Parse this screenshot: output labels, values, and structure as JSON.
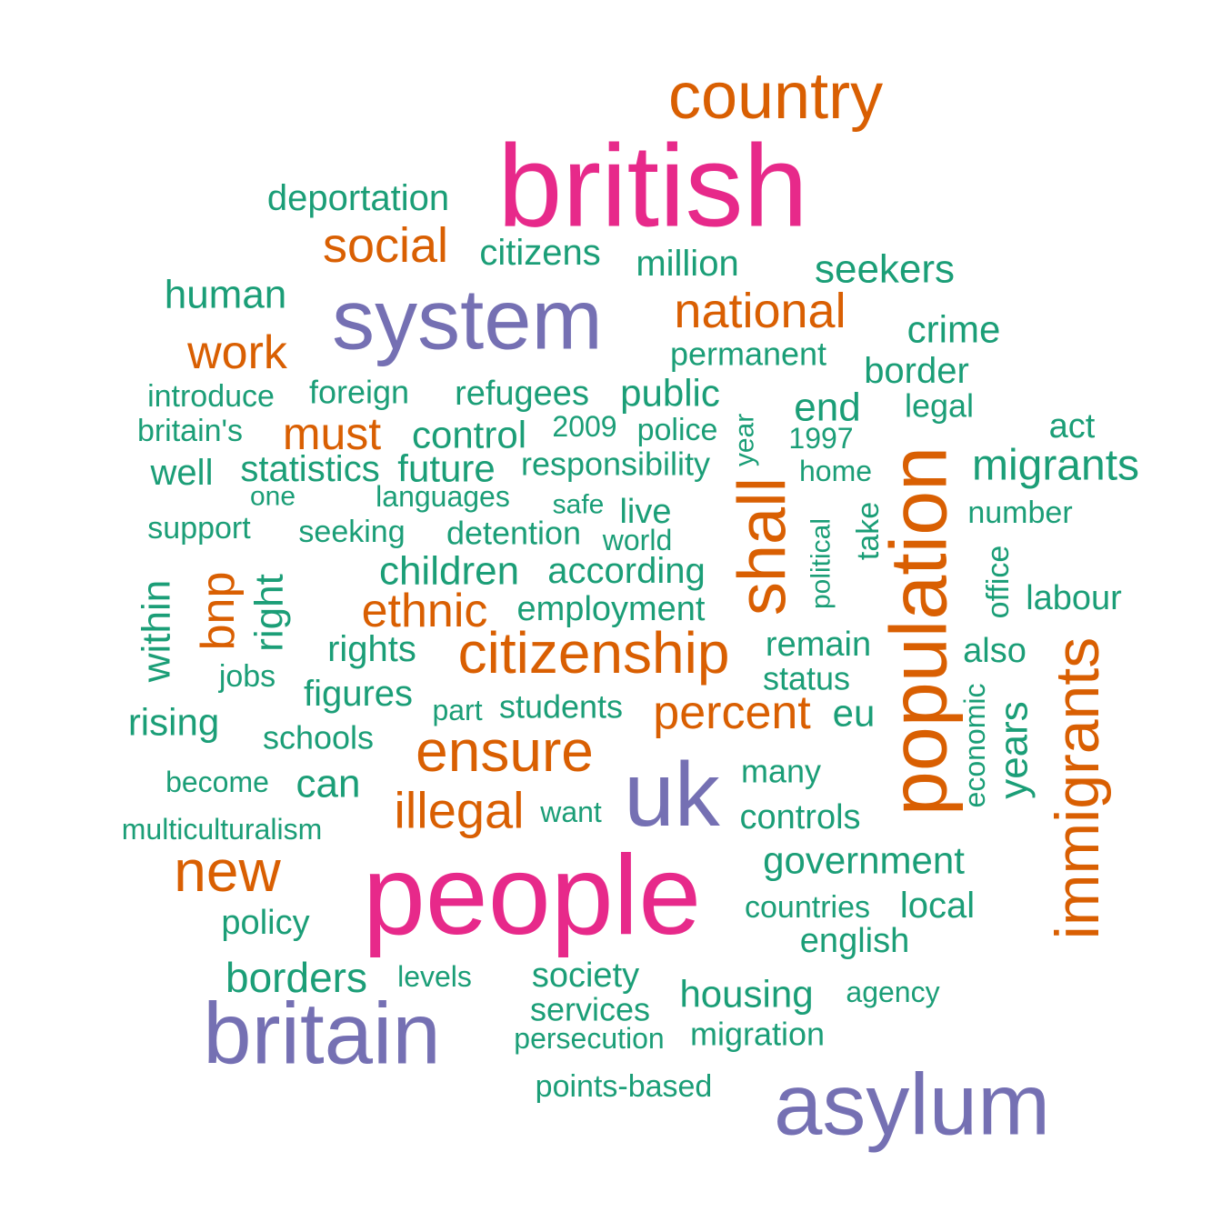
{
  "chart_data": {
    "type": "wordcloud",
    "colors": {
      "magenta": "#e7298a",
      "purple": "#7570b3",
      "orange": "#d95f02",
      "green": "#1b9e77"
    },
    "words": [
      {
        "text": "british",
        "color": "magenta",
        "freq_rank": 1
      },
      {
        "text": "people",
        "color": "magenta",
        "freq_rank": 1
      },
      {
        "text": "system",
        "color": "purple",
        "freq_rank": 2
      },
      {
        "text": "uk",
        "color": "purple",
        "freq_rank": 2
      },
      {
        "text": "britain",
        "color": "purple",
        "freq_rank": 2
      },
      {
        "text": "asylum",
        "color": "purple",
        "freq_rank": 2
      },
      {
        "text": "country",
        "color": "orange",
        "freq_rank": 3
      },
      {
        "text": "social",
        "color": "orange",
        "freq_rank": 3
      },
      {
        "text": "national",
        "color": "orange",
        "freq_rank": 3
      },
      {
        "text": "work",
        "color": "orange",
        "freq_rank": 3
      },
      {
        "text": "must",
        "color": "orange",
        "freq_rank": 3
      },
      {
        "text": "shall",
        "color": "orange",
        "freq_rank": 3
      },
      {
        "text": "population",
        "color": "orange",
        "freq_rank": 3
      },
      {
        "text": "bnp",
        "color": "orange",
        "freq_rank": 3
      },
      {
        "text": "ethnic",
        "color": "orange",
        "freq_rank": 3
      },
      {
        "text": "citizenship",
        "color": "orange",
        "freq_rank": 3
      },
      {
        "text": "percent",
        "color": "orange",
        "freq_rank": 3
      },
      {
        "text": "ensure",
        "color": "orange",
        "freq_rank": 3
      },
      {
        "text": "illegal",
        "color": "orange",
        "freq_rank": 3
      },
      {
        "text": "new",
        "color": "orange",
        "freq_rank": 3
      },
      {
        "text": "immigrants",
        "color": "orange",
        "freq_rank": 3
      },
      {
        "text": "deportation",
        "color": "green",
        "freq_rank": 4
      },
      {
        "text": "citizens",
        "color": "green",
        "freq_rank": 4
      },
      {
        "text": "million",
        "color": "green",
        "freq_rank": 4
      },
      {
        "text": "seekers",
        "color": "green",
        "freq_rank": 4
      },
      {
        "text": "human",
        "color": "green",
        "freq_rank": 4
      },
      {
        "text": "crime",
        "color": "green",
        "freq_rank": 4
      },
      {
        "text": "permanent",
        "color": "green",
        "freq_rank": 4
      },
      {
        "text": "border",
        "color": "green",
        "freq_rank": 4
      },
      {
        "text": "introduce",
        "color": "green",
        "freq_rank": 4
      },
      {
        "text": "foreign",
        "color": "green",
        "freq_rank": 4
      },
      {
        "text": "refugees",
        "color": "green",
        "freq_rank": 4
      },
      {
        "text": "public",
        "color": "green",
        "freq_rank": 4
      },
      {
        "text": "end",
        "color": "green",
        "freq_rank": 4
      },
      {
        "text": "legal",
        "color": "green",
        "freq_rank": 4
      },
      {
        "text": "britain's",
        "color": "green",
        "freq_rank": 4
      },
      {
        "text": "control",
        "color": "green",
        "freq_rank": 4
      },
      {
        "text": "2009",
        "color": "green",
        "freq_rank": 4
      },
      {
        "text": "police",
        "color": "green",
        "freq_rank": 4
      },
      {
        "text": "year",
        "color": "green",
        "freq_rank": 4
      },
      {
        "text": "1997",
        "color": "green",
        "freq_rank": 4
      },
      {
        "text": "act",
        "color": "green",
        "freq_rank": 4
      },
      {
        "text": "well",
        "color": "green",
        "freq_rank": 4
      },
      {
        "text": "statistics",
        "color": "green",
        "freq_rank": 4
      },
      {
        "text": "future",
        "color": "green",
        "freq_rank": 4
      },
      {
        "text": "responsibility",
        "color": "green",
        "freq_rank": 4
      },
      {
        "text": "home",
        "color": "green",
        "freq_rank": 4
      },
      {
        "text": "migrants",
        "color": "green",
        "freq_rank": 4
      },
      {
        "text": "one",
        "color": "green",
        "freq_rank": 4
      },
      {
        "text": "languages",
        "color": "green",
        "freq_rank": 4
      },
      {
        "text": "safe",
        "color": "green",
        "freq_rank": 4
      },
      {
        "text": "live",
        "color": "green",
        "freq_rank": 4
      },
      {
        "text": "number",
        "color": "green",
        "freq_rank": 4
      },
      {
        "text": "support",
        "color": "green",
        "freq_rank": 4
      },
      {
        "text": "seeking",
        "color": "green",
        "freq_rank": 4
      },
      {
        "text": "detention",
        "color": "green",
        "freq_rank": 4
      },
      {
        "text": "world",
        "color": "green",
        "freq_rank": 4
      },
      {
        "text": "political",
        "color": "green",
        "freq_rank": 4
      },
      {
        "text": "take",
        "color": "green",
        "freq_rank": 4
      },
      {
        "text": "office",
        "color": "green",
        "freq_rank": 4
      },
      {
        "text": "within",
        "color": "green",
        "freq_rank": 4
      },
      {
        "text": "right",
        "color": "green",
        "freq_rank": 4
      },
      {
        "text": "children",
        "color": "green",
        "freq_rank": 4
      },
      {
        "text": "according",
        "color": "green",
        "freq_rank": 4
      },
      {
        "text": "labour",
        "color": "green",
        "freq_rank": 4
      },
      {
        "text": "employment",
        "color": "green",
        "freq_rank": 4
      },
      {
        "text": "rights",
        "color": "green",
        "freq_rank": 4
      },
      {
        "text": "remain",
        "color": "green",
        "freq_rank": 4
      },
      {
        "text": "also",
        "color": "green",
        "freq_rank": 4
      },
      {
        "text": "jobs",
        "color": "green",
        "freq_rank": 4
      },
      {
        "text": "status",
        "color": "green",
        "freq_rank": 4
      },
      {
        "text": "figures",
        "color": "green",
        "freq_rank": 4
      },
      {
        "text": "part",
        "color": "green",
        "freq_rank": 4
      },
      {
        "text": "students",
        "color": "green",
        "freq_rank": 4
      },
      {
        "text": "eu",
        "color": "green",
        "freq_rank": 4
      },
      {
        "text": "economic",
        "color": "green",
        "freq_rank": 4
      },
      {
        "text": "years",
        "color": "green",
        "freq_rank": 4
      },
      {
        "text": "rising",
        "color": "green",
        "freq_rank": 4
      },
      {
        "text": "schools",
        "color": "green",
        "freq_rank": 4
      },
      {
        "text": "many",
        "color": "green",
        "freq_rank": 4
      },
      {
        "text": "become",
        "color": "green",
        "freq_rank": 4
      },
      {
        "text": "can",
        "color": "green",
        "freq_rank": 4
      },
      {
        "text": "want",
        "color": "green",
        "freq_rank": 4
      },
      {
        "text": "controls",
        "color": "green",
        "freq_rank": 4
      },
      {
        "text": "multiculturalism",
        "color": "green",
        "freq_rank": 4
      },
      {
        "text": "government",
        "color": "green",
        "freq_rank": 4
      },
      {
        "text": "countries",
        "color": "green",
        "freq_rank": 4
      },
      {
        "text": "local",
        "color": "green",
        "freq_rank": 4
      },
      {
        "text": "policy",
        "color": "green",
        "freq_rank": 4
      },
      {
        "text": "english",
        "color": "green",
        "freq_rank": 4
      },
      {
        "text": "borders",
        "color": "green",
        "freq_rank": 4
      },
      {
        "text": "levels",
        "color": "green",
        "freq_rank": 4
      },
      {
        "text": "society",
        "color": "green",
        "freq_rank": 4
      },
      {
        "text": "housing",
        "color": "green",
        "freq_rank": 4
      },
      {
        "text": "agency",
        "color": "green",
        "freq_rank": 4
      },
      {
        "text": "services",
        "color": "green",
        "freq_rank": 4
      },
      {
        "text": "persecution",
        "color": "green",
        "freq_rank": 4
      },
      {
        "text": "migration",
        "color": "green",
        "freq_rank": 4
      },
      {
        "text": "points-based",
        "color": "green",
        "freq_rank": 4
      }
    ]
  }
}
